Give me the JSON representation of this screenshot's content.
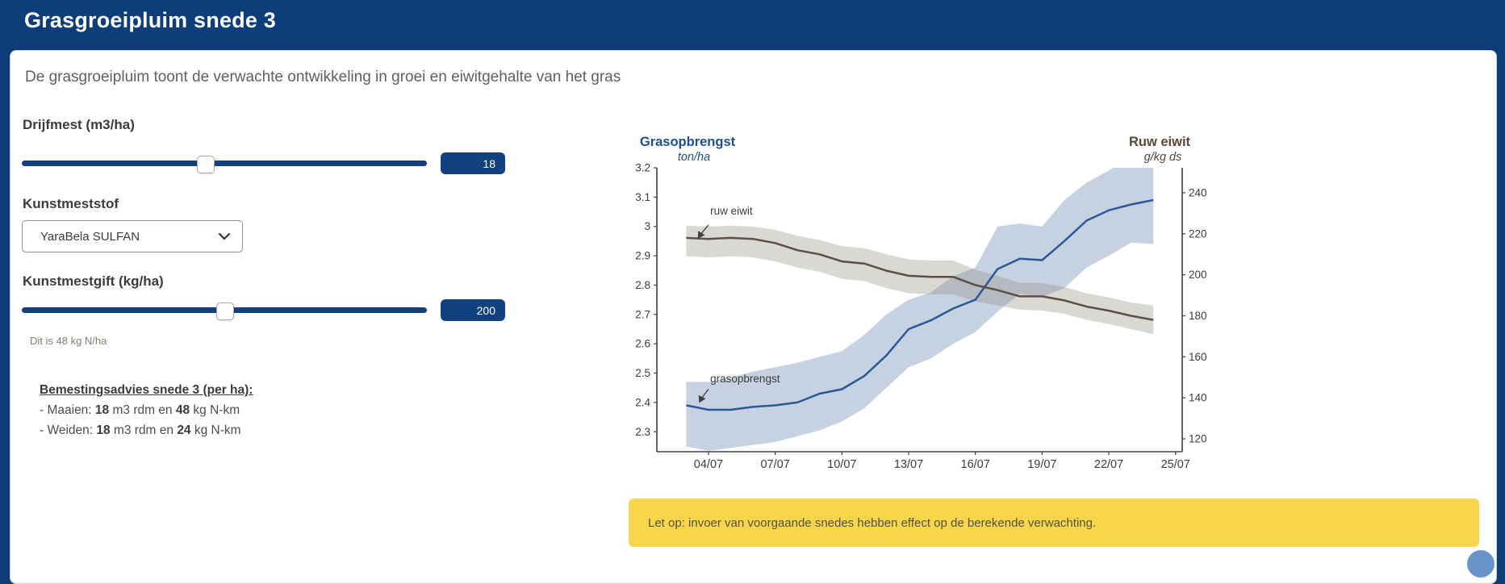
{
  "header": {
    "title": "Grasgroeipluim snede 3"
  },
  "intro": "De grasgroeipluim toont de verwachte ontwikkeling in groei en eiwitgehalte van het gras",
  "controls": {
    "drijfmest": {
      "label": "Drijfmest (m3/ha)",
      "value": "18"
    },
    "kunstmeststof": {
      "label": "Kunstmeststof",
      "selected": "YaraBela SULFAN"
    },
    "kunstmestgift": {
      "label": "Kunstmestgift (kg/ha)",
      "value": "200",
      "note": "Dit is 48 kg N/ha"
    }
  },
  "advies": {
    "heading": "Bemestingsadvies snede 3 (per ha):",
    "maaien": {
      "pre": "- Maaien: ",
      "v1": "18",
      "mid": " m3 rdm en ",
      "v2": "48",
      "post": " kg N-km"
    },
    "weiden": {
      "pre": "- Weiden: ",
      "v1": "18",
      "mid": " m3 rdm en ",
      "v2": "24",
      "post": " kg N-km"
    }
  },
  "warning": "Let op: invoer van voorgaande snedes hebben effect op de berekende verwachting.",
  "chart_data": {
    "type": "line",
    "left_axis": {
      "title": "Grasopbrengst",
      "unit": "ton/ha",
      "color": "#1f4e8f",
      "ticks": [
        3.2,
        3.1,
        3,
        2.9,
        2.8,
        2.7,
        2.6,
        2.5,
        2.4,
        2.3
      ],
      "range": [
        2.232,
        3.2
      ]
    },
    "right_axis": {
      "title": "Ruw eiwit",
      "unit": "g/kg ds",
      "color": "#54473c",
      "ticks": [
        240,
        220,
        200,
        180,
        160,
        140,
        120
      ],
      "range": [
        113.7,
        252.2
      ]
    },
    "x_axis": {
      "tick_days": [
        4,
        7,
        10,
        13,
        16,
        19,
        22,
        25
      ],
      "tick_labels": [
        "04/07",
        "07/07",
        "10/07",
        "13/07",
        "16/07",
        "19/07",
        "22/07",
        "25/07"
      ],
      "range_days": [
        1.68,
        25.3
      ]
    },
    "days": [
      3,
      4,
      5,
      6,
      7,
      8,
      9,
      10,
      11,
      12,
      13,
      14,
      15,
      16,
      17,
      18,
      19,
      20,
      21,
      22,
      23,
      24
    ],
    "series": [
      {
        "name": "grasopbrengst",
        "axis": "left",
        "color": "#2a5899",
        "band_color": "rgba(104,138,180,0.38)",
        "values": [
          2.39,
          2.375,
          2.375,
          2.385,
          2.39,
          2.4,
          2.43,
          2.445,
          2.49,
          2.56,
          2.65,
          2.68,
          2.72,
          2.75,
          2.855,
          2.89,
          2.885,
          2.95,
          3.02,
          3.055,
          3.075,
          3.09
        ],
        "band_low": [
          2.25,
          2.235,
          2.245,
          2.255,
          2.265,
          2.285,
          2.305,
          2.335,
          2.38,
          2.45,
          2.52,
          2.55,
          2.6,
          2.64,
          2.71,
          2.77,
          2.76,
          2.79,
          2.86,
          2.9,
          2.945,
          2.94
        ],
        "band_high": [
          2.47,
          2.47,
          2.485,
          2.505,
          2.52,
          2.535,
          2.555,
          2.575,
          2.63,
          2.7,
          2.75,
          2.775,
          2.83,
          2.86,
          3.0,
          3.01,
          3.0,
          3.09,
          3.15,
          3.19,
          3.24,
          3.28
        ]
      },
      {
        "name": "ruw eiwit",
        "axis": "right",
        "color": "#5a5045",
        "band_color": "rgba(150,142,128,0.35)",
        "values": [
          218.0,
          217.5,
          218.0,
          217.5,
          215.5,
          212.0,
          210.0,
          206.5,
          205.5,
          202.0,
          199.5,
          199.0,
          199.0,
          195.0,
          192.5,
          189.5,
          189.5,
          187.5,
          184.5,
          182.5,
          180.0,
          178.0
        ],
        "band_low": [
          209.0,
          208.5,
          209.0,
          208.5,
          206.5,
          203.5,
          201.5,
          198.0,
          197.0,
          193.5,
          191.0,
          190.5,
          190.5,
          187.0,
          185.0,
          183.0,
          182.5,
          181.0,
          178.0,
          176.0,
          173.5,
          171.0
        ],
        "band_high": [
          224.0,
          223.5,
          224.0,
          223.5,
          222.0,
          219.0,
          217.0,
          214.0,
          213.0,
          210.0,
          207.5,
          207.0,
          207.0,
          202.5,
          199.5,
          196.0,
          196.0,
          194.0,
          191.0,
          189.0,
          186.5,
          185.0
        ]
      }
    ],
    "annotations": [
      {
        "text": "ruw eiwit",
        "day": 4.08,
        "val": 3.04,
        "arrow_from": [
          4.0,
          3.005
        ],
        "arrow_to": [
          3.55,
          2.962
        ]
      },
      {
        "text": "grasopbrengst",
        "day": 4.08,
        "val": 2.468,
        "arrow_from": [
          4.0,
          2.445
        ],
        "arrow_to": [
          3.6,
          2.402
        ]
      }
    ]
  }
}
